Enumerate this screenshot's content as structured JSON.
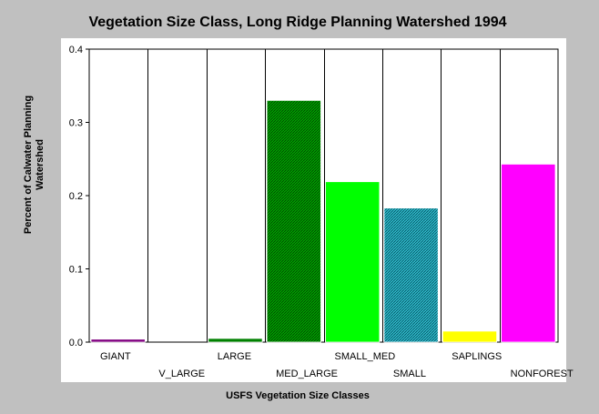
{
  "chart_data": {
    "type": "bar",
    "title": "Vegetation Size Class, Long Ridge Planning Watershed 1994",
    "xlabel": "USFS Vegetation Size Classes",
    "ylabel_lines": [
      "Percent of Calwater Planning",
      "Watershed"
    ],
    "ylim": [
      0,
      0.4
    ],
    "yticks": [
      "0.0",
      "0.1",
      "0.2",
      "0.3",
      "0.4"
    ],
    "grid": "vertical category dividers",
    "categories": [
      "GIANT",
      "V_LARGE",
      "LARGE",
      "MED_LARGE",
      "SMALL_MED",
      "SMALL",
      "SAPLINGS",
      "NONFOREST"
    ],
    "values": [
      0.004,
      0.0,
      0.005,
      0.33,
      0.219,
      0.183,
      0.015,
      0.243
    ],
    "colors": [
      "#800080",
      "#008000",
      "#008000",
      "#00a000",
      "#00ff00",
      "#20a0b0",
      "#ffff00",
      "#ff00ff"
    ],
    "patterns": [
      "solid",
      "solid",
      "solid",
      "hatch",
      "solid",
      "hatch",
      "solid",
      "solid"
    ]
  }
}
